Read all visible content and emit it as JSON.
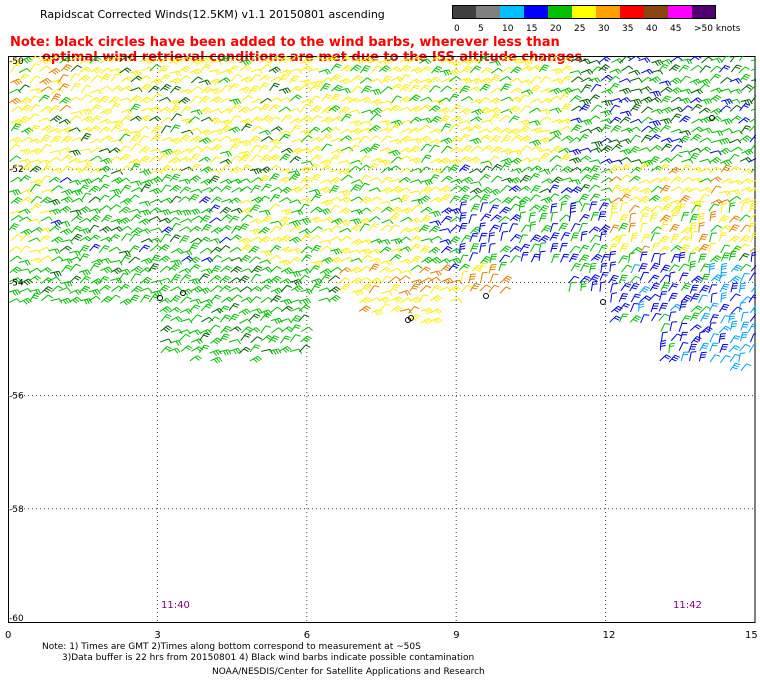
{
  "header": {
    "title": "Rapidscat Corrected Winds(12.5KM) v1.1 20150801 ascending",
    "note_line1": "Note: black circles have been added to the wind barbs, wherever less than",
    "note_line2": "optimal wind retrieval conditions are met due to the ISS altitude changes."
  },
  "legend": {
    "labels": [
      "0",
      "5",
      "10",
      "15",
      "20",
      "25",
      "30",
      "35",
      "40",
      "45",
      ">50 knots"
    ],
    "colors": [
      "#404040",
      "#808080",
      "#00c0ff",
      "#0000ff",
      "#00c000",
      "#ffff00",
      "#ffa000",
      "#ff0000",
      "#8b4513",
      "#ff00ff",
      "#500070"
    ]
  },
  "map": {
    "x_ticks": [
      "0",
      "3",
      "6",
      "9",
      "12",
      "15"
    ],
    "y_ticks": [
      "-50",
      "-52",
      "-54",
      "-56",
      "-58",
      "-60"
    ],
    "time_labels": [
      "11:40",
      "11:42"
    ],
    "time_color": "#800080",
    "barb_colors": {
      "green": "#00c000",
      "dark_green": "#006000",
      "yellow": "#ffee00",
      "orange": "#e08000",
      "blue": "#0000e0",
      "light_blue": "#00a0ff"
    }
  },
  "footer": {
    "line1": "Note: 1) Times are GMT 2)Times along bottom correspond to measurement at ~50S",
    "line2": "3)Data buffer is 22 hrs from 20150801 4) Black wind barbs indicate possible contamination",
    "line3": "NOAA/NESDIS/Center for Satellite Applications and Research"
  }
}
